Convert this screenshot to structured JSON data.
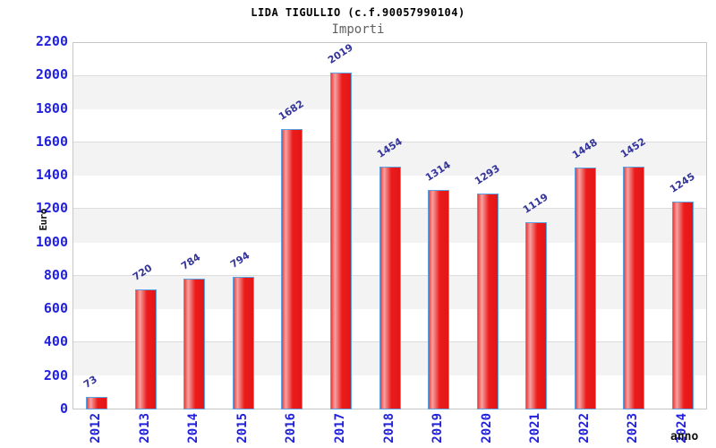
{
  "header": {
    "title": "LIDA TIGULLIO (c.f.90057990104)",
    "subtitle": "Importi"
  },
  "chart_data": {
    "type": "bar",
    "title": "LIDA TIGULLIO (c.f.90057990104)",
    "subtitle": "Importi",
    "categories": [
      "2012",
      "2013",
      "2014",
      "2015",
      "2016",
      "2017",
      "2018",
      "2019",
      "2020",
      "2021",
      "2022",
      "2023",
      "2024"
    ],
    "values": [
      73,
      720,
      784,
      794,
      1682,
      2019,
      1454,
      1314,
      1293,
      1119,
      1448,
      1452,
      1245
    ],
    "xlabel": "anno",
    "ylabel": "Euro",
    "ylim": [
      0,
      2200
    ],
    "ytick_step": 200,
    "yticks": [
      0,
      200,
      400,
      600,
      800,
      1000,
      1200,
      1400,
      1600,
      1800,
      2000,
      2200
    ],
    "grid": true,
    "legend": "none",
    "colors": {
      "bar_edge_dark": "#e43f3f",
      "bar_highlight": "#f6a2a2",
      "bar_fill": "#ec1c1c",
      "bar_fill_end": "#e31616",
      "bar_border": "#5aa2e2",
      "axis_tick_label": "#2222dd",
      "value_label": "#34349a",
      "band_fill": "#f3f3f3",
      "grid_line": "#dcdcdc",
      "plot_border": "#c6c6c6"
    }
  }
}
